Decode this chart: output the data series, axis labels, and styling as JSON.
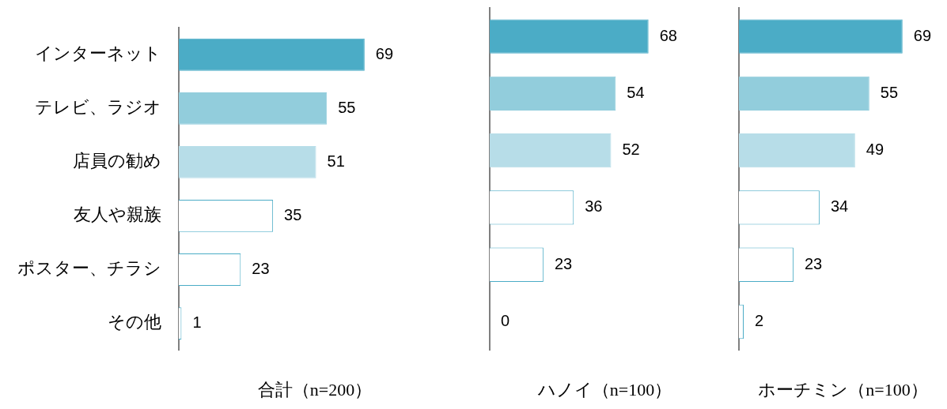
{
  "chart_data": [
    {
      "type": "bar",
      "orientation": "horizontal",
      "xlabel": "合計（n=200）",
      "categories": [
        "インターネット",
        "テレビ、ラジオ",
        "店員の勧め",
        "友人や親族",
        "ポスター、チラシ",
        "その他"
      ],
      "values": [
        69,
        55,
        51,
        35,
        23,
        1
      ],
      "colors": [
        "#4bacc6",
        "#92cddc",
        "#b7dde8",
        "#ffffff",
        "#ffffff",
        "#ffffff"
      ],
      "data_labels": true,
      "tick_labels": "y",
      "grid": false,
      "legend": false
    },
    {
      "type": "bar",
      "orientation": "horizontal",
      "xlabel": "ハノイ（n=100）",
      "categories": [
        null,
        null,
        null,
        null,
        null,
        null
      ],
      "values": [
        68,
        54,
        52,
        36,
        23,
        0
      ],
      "colors": [
        "#4bacc6",
        "#92cddc",
        "#b7dde8",
        "#ffffff",
        "#ffffff",
        "#ffffff"
      ],
      "data_labels": true,
      "tick_labels": false,
      "grid": false,
      "legend": false
    },
    {
      "type": "bar",
      "orientation": "horizontal",
      "xlabel": "ホーチミン（n=100）",
      "categories": [
        null,
        null,
        null,
        null,
        null,
        null
      ],
      "values": [
        69,
        55,
        49,
        34,
        23,
        2
      ],
      "colors": [
        "#4bacc6",
        "#92cddc",
        "#b7dde8",
        "#ffffff",
        "#ffffff",
        "#ffffff"
      ],
      "data_labels": true,
      "tick_labels": false,
      "grid": false,
      "legend": false
    }
  ]
}
